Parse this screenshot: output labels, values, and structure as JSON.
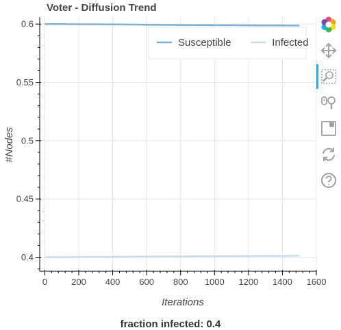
{
  "chart_data": {
    "type": "line",
    "title": "Voter - Diffusion Trend",
    "xlabel": "Iterations",
    "ylabel": "#Nodes",
    "xlim": [
      -30,
      1600
    ],
    "ylim": [
      0.388,
      0.606
    ],
    "x_ticks": [
      0,
      200,
      400,
      600,
      800,
      1000,
      1200,
      1400,
      1600
    ],
    "y_ticks": [
      0.4,
      0.45,
      0.5,
      0.55,
      0.6
    ],
    "y_tick_labels": [
      "0.4",
      "0.45",
      "0.5",
      "0.55",
      "0.6"
    ],
    "grid": true,
    "legend_position": "top-right",
    "series": [
      {
        "name": "Susceptible",
        "color": "#7fb0d6",
        "x": [
          0,
          100,
          200,
          300,
          400,
          500,
          600,
          700,
          800,
          900,
          1000,
          1100,
          1200,
          1300,
          1400,
          1500
        ],
        "y": [
          0.6,
          0.6,
          0.5998,
          0.5998,
          0.5997,
          0.5996,
          0.5994,
          0.5993,
          0.5992,
          0.5991,
          0.599,
          0.599,
          0.5989,
          0.5988,
          0.5988,
          0.5987
        ]
      },
      {
        "name": "Infected",
        "color": "#c9dcea",
        "x": [
          0,
          100,
          200,
          300,
          400,
          500,
          600,
          700,
          800,
          900,
          1000,
          1100,
          1200,
          1300,
          1400,
          1500
        ],
        "y": [
          0.4,
          0.4,
          0.4002,
          0.4002,
          0.4003,
          0.4004,
          0.4006,
          0.4007,
          0.4008,
          0.4009,
          0.401,
          0.401,
          0.4011,
          0.4012,
          0.4012,
          0.4013
        ]
      }
    ]
  },
  "toolbar": {
    "tools": [
      {
        "name": "bokeh-logo-icon",
        "icon": "bokeh-logo-icon"
      },
      {
        "name": "pan-tool-icon",
        "icon": "pan-icon"
      },
      {
        "name": "box-zoom-tool-icon",
        "icon": "box-zoom-icon",
        "active": true
      },
      {
        "name": "wheel-zoom-tool-icon",
        "icon": "wheel-zoom-icon"
      },
      {
        "name": "save-tool-icon",
        "icon": "save-icon"
      },
      {
        "name": "reset-tool-icon",
        "icon": "reset-icon"
      },
      {
        "name": "help-tool-icon",
        "icon": "help-icon"
      }
    ],
    "accent": "#26aae1",
    "icon_color": "#a0a0a0"
  },
  "footer": {
    "text": "fraction infected: 0.4"
  }
}
